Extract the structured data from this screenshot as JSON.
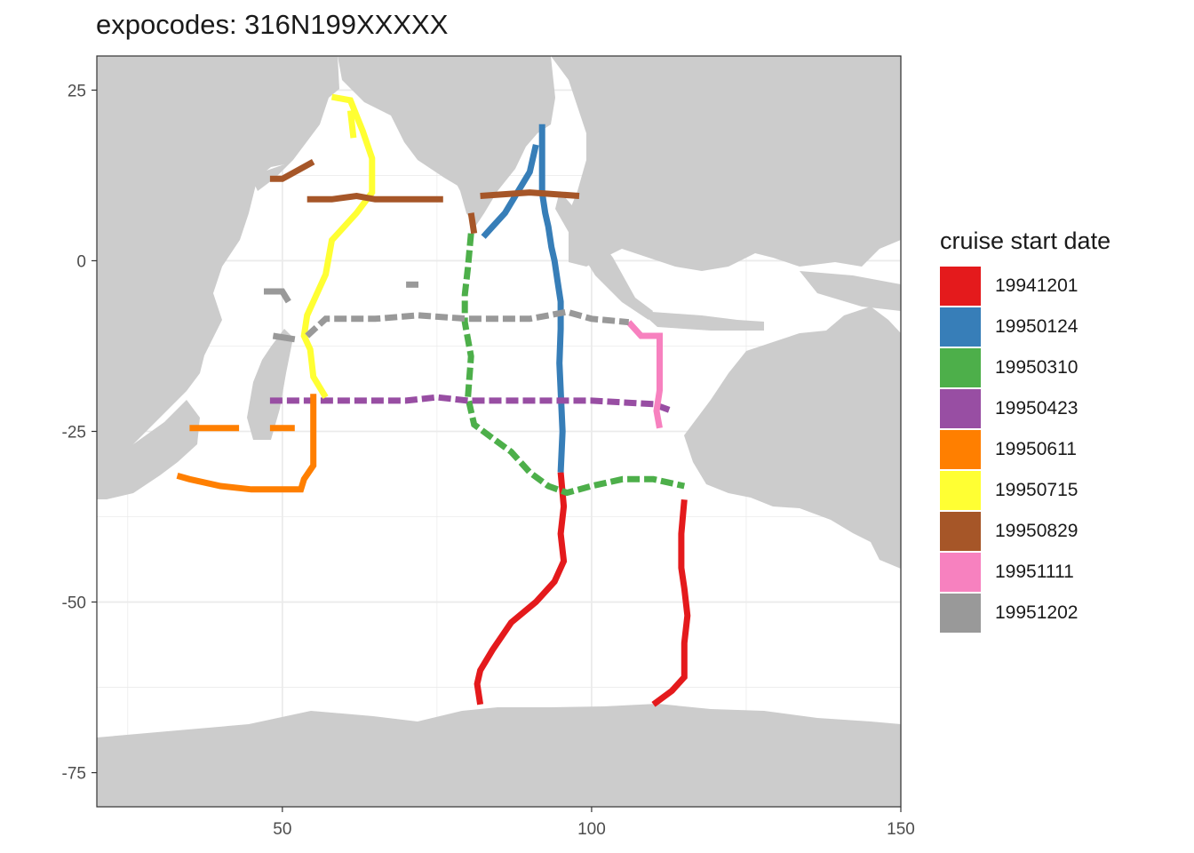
{
  "title": "expocodes: 316N199XXXXX",
  "legend": {
    "title": "cruise start date",
    "items": [
      {
        "label": "19941201",
        "color": "#e41a1c"
      },
      {
        "label": "19950124",
        "color": "#377eb8"
      },
      {
        "label": "19950310",
        "color": "#4daf4a"
      },
      {
        "label": "19950423",
        "color": "#984ea3"
      },
      {
        "label": "19950611",
        "color": "#ff7f00"
      },
      {
        "label": "19950715",
        "color": "#ffff33"
      },
      {
        "label": "19950829",
        "color": "#a65628"
      },
      {
        "label": "19951111",
        "color": "#f781bf"
      },
      {
        "label": "19951202",
        "color": "#999999"
      }
    ]
  },
  "colors": {
    "land": "#cccccc",
    "ocean": "#ffffff",
    "grid": "#ebebeb",
    "border": "#333333"
  },
  "chart_data": {
    "type": "map",
    "xlim": [
      20,
      150
    ],
    "ylim": [
      -80,
      30
    ],
    "x_ticks": [
      50,
      100,
      150
    ],
    "y_ticks": [
      25,
      0,
      -25,
      -50,
      -75
    ],
    "x_tick_labels": [
      "50",
      "100",
      "150"
    ],
    "y_tick_labels": [
      "25",
      "0",
      "-25",
      "-50",
      "-75"
    ],
    "grid": true,
    "legend_position": "right",
    "tracks": [
      {
        "name": "19941201",
        "color": "#e41a1c",
        "dashed": false,
        "points": [
          [
            95,
            -31
          ],
          [
            95.5,
            -36
          ],
          [
            95,
            -40
          ],
          [
            95.5,
            -44
          ],
          [
            94,
            -47
          ],
          [
            91,
            -50
          ],
          [
            87,
            -53
          ],
          [
            84,
            -57
          ],
          [
            82,
            -60
          ],
          [
            81.5,
            -62
          ],
          [
            82,
            -65
          ]
        ]
      },
      {
        "name": "19941201",
        "color": "#e41a1c",
        "dashed": false,
        "points": [
          [
            115,
            -35
          ],
          [
            114.5,
            -40
          ],
          [
            114.5,
            -45
          ],
          [
            115,
            -48
          ],
          [
            115.5,
            -52
          ],
          [
            115,
            -56
          ],
          [
            115,
            -61
          ],
          [
            113,
            -63
          ],
          [
            110,
            -65
          ]
        ]
      },
      {
        "name": "19950124",
        "color": "#377eb8",
        "dashed": false,
        "points": [
          [
            92,
            20
          ],
          [
            92,
            15
          ],
          [
            92,
            10
          ],
          [
            92.5,
            7
          ],
          [
            93,
            5
          ],
          [
            93.5,
            2
          ],
          [
            94,
            0
          ],
          [
            94.5,
            -3
          ],
          [
            95,
            -6
          ],
          [
            95,
            -10
          ],
          [
            94.8,
            -15
          ],
          [
            95,
            -19
          ],
          [
            95.3,
            -25
          ],
          [
            95,
            -31
          ]
        ]
      },
      {
        "name": "19950124",
        "color": "#377eb8",
        "dashed": false,
        "points": [
          [
            91,
            17
          ],
          [
            90,
            13
          ],
          [
            88,
            10
          ],
          [
            86,
            7
          ],
          [
            84,
            5
          ],
          [
            82.5,
            3.5
          ]
        ]
      },
      {
        "name": "19950310",
        "color": "#4daf4a",
        "dashed": true,
        "points": [
          [
            80.5,
            4
          ],
          [
            80,
            -1
          ],
          [
            79.5,
            -5
          ],
          [
            79.5,
            -9
          ],
          [
            80.5,
            -14
          ],
          [
            80,
            -20
          ],
          [
            81,
            -24
          ],
          [
            84,
            -26
          ],
          [
            87,
            -28
          ],
          [
            90,
            -31
          ],
          [
            93,
            -33
          ],
          [
            96,
            -34
          ],
          [
            100,
            -33
          ],
          [
            105,
            -32
          ],
          [
            110,
            -32
          ],
          [
            115,
            -33
          ]
        ]
      },
      {
        "name": "19950423",
        "color": "#984ea3",
        "dashed": true,
        "points": [
          [
            48,
            -20.5
          ],
          [
            55,
            -20.5
          ],
          [
            62,
            -20.5
          ],
          [
            70,
            -20.5
          ],
          [
            75,
            -20
          ],
          [
            80,
            -20.5
          ],
          [
            90,
            -20.5
          ],
          [
            100,
            -20.5
          ],
          [
            110,
            -21
          ],
          [
            113,
            -22
          ]
        ]
      },
      {
        "name": "19950611",
        "color": "#ff7f00",
        "dashed": false,
        "points": [
          [
            55,
            -19.5
          ],
          [
            55,
            -25
          ],
          [
            55,
            -30
          ],
          [
            53.5,
            -32
          ],
          [
            53,
            -33.5
          ],
          [
            45,
            -33.5
          ],
          [
            40,
            -33
          ],
          [
            35,
            -32
          ],
          [
            33,
            -31.5
          ]
        ]
      },
      {
        "name": "19950611",
        "color": "#ff7f00",
        "dashed": false,
        "points": [
          [
            35,
            -24.5
          ],
          [
            43,
            -24.5
          ]
        ]
      },
      {
        "name": "19950611",
        "color": "#ff7f00",
        "dashed": false,
        "points": [
          [
            48,
            -24.5
          ],
          [
            52,
            -24.5
          ]
        ]
      },
      {
        "name": "19950715",
        "color": "#ffff33",
        "dashed": false,
        "points": [
          [
            58,
            24
          ],
          [
            61,
            23.5
          ],
          [
            63,
            19
          ],
          [
            64.5,
            15
          ],
          [
            64.5,
            10
          ],
          [
            62,
            7
          ],
          [
            58,
            3
          ],
          [
            57,
            -2
          ],
          [
            55.5,
            -5
          ],
          [
            54,
            -8
          ],
          [
            53.5,
            -11
          ],
          [
            54.5,
            -13
          ],
          [
            55,
            -17
          ],
          [
            57,
            -20
          ]
        ]
      },
      {
        "name": "19950715",
        "color": "#ffff33",
        "dashed": false,
        "points": [
          [
            61,
            22
          ],
          [
            61.5,
            18
          ]
        ]
      },
      {
        "name": "19950829",
        "color": "#a65628",
        "dashed": false,
        "points": [
          [
            48,
            12
          ],
          [
            50,
            12
          ],
          [
            55,
            14.5
          ]
        ]
      },
      {
        "name": "19950829",
        "color": "#a65628",
        "dashed": false,
        "points": [
          [
            54,
            9
          ],
          [
            58,
            9
          ],
          [
            62,
            9.5
          ],
          [
            65,
            9
          ],
          [
            76,
            9
          ]
        ]
      },
      {
        "name": "19950829",
        "color": "#a65628",
        "dashed": false,
        "points": [
          [
            82,
            9.5
          ],
          [
            90,
            10
          ],
          [
            98,
            9.5
          ]
        ]
      },
      {
        "name": "19950829",
        "color": "#a65628",
        "dashed": false,
        "points": [
          [
            80.5,
            7
          ],
          [
            81,
            4
          ]
        ]
      },
      {
        "name": "19951111",
        "color": "#f781bf",
        "dashed": false,
        "points": [
          [
            106,
            -9
          ],
          [
            108,
            -11
          ],
          [
            111,
            -11
          ],
          [
            111,
            -15
          ],
          [
            111,
            -19
          ],
          [
            110.5,
            -22
          ],
          [
            111,
            -24.5
          ]
        ]
      },
      {
        "name": "19951202",
        "color": "#999999",
        "dashed": true,
        "points": [
          [
            54,
            -11
          ],
          [
            57,
            -8.5
          ],
          [
            65,
            -8.5
          ],
          [
            72,
            -8
          ],
          [
            80,
            -8.5
          ],
          [
            90,
            -8.5
          ],
          [
            96,
            -7.5
          ],
          [
            100,
            -8.5
          ],
          [
            106,
            -9
          ]
        ]
      },
      {
        "name": "19951202",
        "color": "#999999",
        "dashed": false,
        "points": [
          [
            47,
            -4.5
          ],
          [
            50,
            -4.5
          ],
          [
            51,
            -6
          ]
        ]
      },
      {
        "name": "19951202",
        "color": "#999999",
        "dashed": false,
        "points": [
          [
            48.5,
            -11
          ],
          [
            52,
            -11.5
          ]
        ]
      },
      {
        "name": "19951202",
        "color": "#999999",
        "dashed": false,
        "points": [
          [
            70,
            -3.5
          ],
          [
            72,
            -3.5
          ]
        ]
      }
    ]
  }
}
